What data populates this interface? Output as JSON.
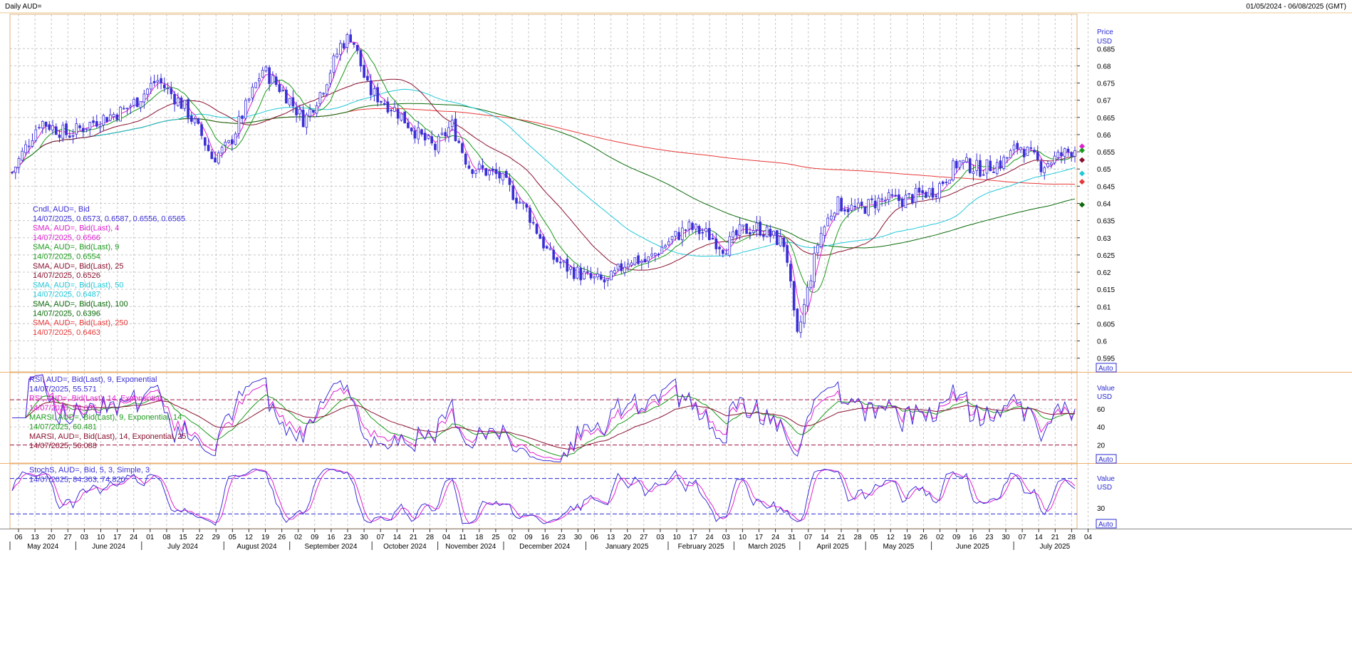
{
  "header": {
    "title": "Daily AUD=",
    "range": "01/05/2024 - 06/08/2025 (GMT)"
  },
  "legend": [
    {
      "text": "Cndl, AUD=, Bid",
      "color": "#3a2fd6"
    },
    {
      "text": "14/07/2025, 0.6573, 0.6587, 0.6556, 0.6565",
      "color": "#3a2fd6"
    },
    {
      "text": "SMA, AUD=, Bid(Last), 4",
      "color": "#e020d0"
    },
    {
      "text": "14/07/2025, 0.6566",
      "color": "#e020d0"
    },
    {
      "text": "SMA, AUD=, Bid(Last), 9",
      "color": "#1c9a1c"
    },
    {
      "text": "14/07/2025, 0.6554",
      "color": "#1c9a1c"
    },
    {
      "text": "SMA, AUD=, Bid(Last), 25",
      "color": "#8a1230"
    },
    {
      "text": "14/07/2025, 0.6526",
      "color": "#8a1230"
    },
    {
      "text": "SMA, AUD=, Bid(Last), 50",
      "color": "#20c8d8"
    },
    {
      "text": "14/07/2025, 0.6487",
      "color": "#20c8d8"
    },
    {
      "text": "SMA, AUD=, Bid(Last), 100",
      "color": "#0a6a0a"
    },
    {
      "text": "14/07/2025, 0.6396",
      "color": "#0a6a0a"
    },
    {
      "text": "SMA, AUD=, Bid(Last), 250",
      "color": "#e83838"
    },
    {
      "text": "14/07/2025, 0.6463",
      "color": "#e83838"
    }
  ],
  "rsi_legend": [
    {
      "text": "RSI, AUD=, Bid(Last), 9, Exponential",
      "color": "#3a2fd6"
    },
    {
      "text": "14/07/2025, 55.571",
      "color": "#3a2fd6"
    },
    {
      "text": "RSI, AUD=, Bid(Last), 14, Exponential",
      "color": "#e020d0"
    },
    {
      "text": "14/07/2025, 56.035",
      "color": "#e020d0"
    },
    {
      "text": "MARSI, AUD=, Bid(Last), 9, Exponential, 14",
      "color": "#1c9a1c"
    },
    {
      "text": "14/07/2025, 60.481",
      "color": "#1c9a1c"
    },
    {
      "text": "MARSI, AUD=, Bid(Last), 14, Exponential, 25",
      "color": "#8a1230"
    },
    {
      "text": "14/07/2025, 56.088",
      "color": "#8a1230"
    }
  ],
  "stoch_legend": [
    {
      "text": "StochS, AUD=, Bid, 5, 3, Simple, 3",
      "color": "#3a2fd6"
    },
    {
      "text": "14/07/2025, 84.303, 74.820",
      "color": "#3a2fd6"
    }
  ],
  "price_axis": {
    "title": "Price",
    "unit": "USD",
    "auto": "Auto",
    "ticks": [
      "0.685",
      "0.68",
      "0.675",
      "0.67",
      "0.665",
      "0.66",
      "0.655",
      "0.65",
      "0.645",
      "0.64",
      "0.635",
      "0.63",
      "0.625",
      "0.62",
      "0.615",
      "0.61",
      "0.605",
      "0.6",
      "0.595"
    ]
  },
  "rsi_axis": {
    "title": "Value",
    "unit": "USD",
    "auto": "Auto",
    "ticks": [
      "60",
      "40",
      "20"
    ]
  },
  "stoch_axis": {
    "title": "Value",
    "unit": "USD",
    "auto": "Auto",
    "ticks": [
      "30"
    ]
  },
  "x_days": [
    "06",
    "13",
    "20",
    "27",
    "03",
    "10",
    "17",
    "24",
    "01",
    "08",
    "15",
    "22",
    "29",
    "05",
    "12",
    "19",
    "26",
    "02",
    "09",
    "16",
    "23",
    "30",
    "07",
    "14",
    "21",
    "28",
    "04",
    "11",
    "18",
    "25",
    "02",
    "09",
    "16",
    "23",
    "30",
    "06",
    "13",
    "20",
    "27",
    "03",
    "10",
    "17",
    "24",
    "03",
    "10",
    "17",
    "24",
    "31",
    "07",
    "14",
    "21",
    "28",
    "05",
    "12",
    "19",
    "26",
    "02",
    "09",
    "16",
    "23",
    "30",
    "07",
    "14",
    "21",
    "28",
    "04"
  ],
  "x_months": [
    "May 2024",
    "June 2024",
    "July 2024",
    "August 2024",
    "September 2024",
    "October 2024",
    "November 2024",
    "December 2024",
    "January 2025",
    "February 2025",
    "March 2025",
    "April 2025",
    "May 2025",
    "June 2025",
    "July 2025"
  ],
  "colors": {
    "candle": "#3a2fd6",
    "sma4": "#e020d0",
    "sma9": "#1c9a1c",
    "sma25": "#8a1230",
    "sma50": "#20c8d8",
    "sma100": "#0a6a0a",
    "sma250": "#e83838",
    "grid": "#c8c8c8",
    "panel_border": "#f0b070",
    "ref_line": "#a01040"
  },
  "chart_data": {
    "type": "line",
    "title": "Daily AUD=",
    "ylabel": "Price USD",
    "ylim": [
      0.591,
      0.695
    ],
    "series": [
      {
        "name": "Cndl, AUD=, Bid (close, approx.)",
        "x": [
          "2024-05-01",
          "2024-05-15",
          "2024-06-03",
          "2024-06-17",
          "2024-07-01",
          "2024-07-08",
          "2024-07-17",
          "2024-08-05",
          "2024-08-19",
          "2024-09-02",
          "2024-09-16",
          "2024-09-30",
          "2024-10-07",
          "2024-10-21",
          "2024-11-04",
          "2024-11-11",
          "2024-11-25",
          "2024-12-09",
          "2024-12-23",
          "2025-01-13",
          "2025-01-27",
          "2025-02-10",
          "2025-02-24",
          "2025-03-10",
          "2025-03-24",
          "2025-04-07",
          "2025-04-21",
          "2025-05-05",
          "2025-05-19",
          "2025-06-02",
          "2025-06-16",
          "2025-06-30",
          "2025-07-14"
        ],
        "values": [
          0.652,
          0.664,
          0.664,
          0.664,
          0.666,
          0.678,
          0.673,
          0.653,
          0.666,
          0.672,
          0.674,
          0.69,
          0.673,
          0.666,
          0.659,
          0.652,
          0.652,
          0.638,
          0.621,
          0.618,
          0.627,
          0.631,
          0.636,
          0.634,
          0.631,
          0.598,
          0.636,
          0.641,
          0.643,
          0.648,
          0.651,
          0.657,
          0.6565
        ]
      },
      {
        "name": "SMA, AUD=, Bid(Last), 4",
        "last": 0.6566
      },
      {
        "name": "SMA, AUD=, Bid(Last), 9",
        "last": 0.6554
      },
      {
        "name": "SMA, AUD=, Bid(Last), 25",
        "last": 0.6526
      },
      {
        "name": "SMA, AUD=, Bid(Last), 50",
        "last": 0.6487
      },
      {
        "name": "SMA, AUD=, Bid(Last), 100",
        "last": 0.6396
      },
      {
        "name": "SMA, AUD=, Bid(Last), 250",
        "last": 0.6463
      },
      {
        "name": "RSI, AUD=, Bid(Last), 9, Exponential",
        "last": 55.571
      },
      {
        "name": "RSI, AUD=, Bid(Last), 14, Exponential",
        "last": 56.035
      },
      {
        "name": "MARSI, AUD=, Bid(Last), 9, Exponential, 14",
        "last": 60.481
      },
      {
        "name": "MARSI, AUD=, Bid(Last), 14, Exponential, 25",
        "last": 56.088
      },
      {
        "name": "StochS, AUD=, Bid, 5, 3, Simple, 3",
        "last": [
          84.303,
          74.82
        ]
      }
    ],
    "grid": true
  }
}
